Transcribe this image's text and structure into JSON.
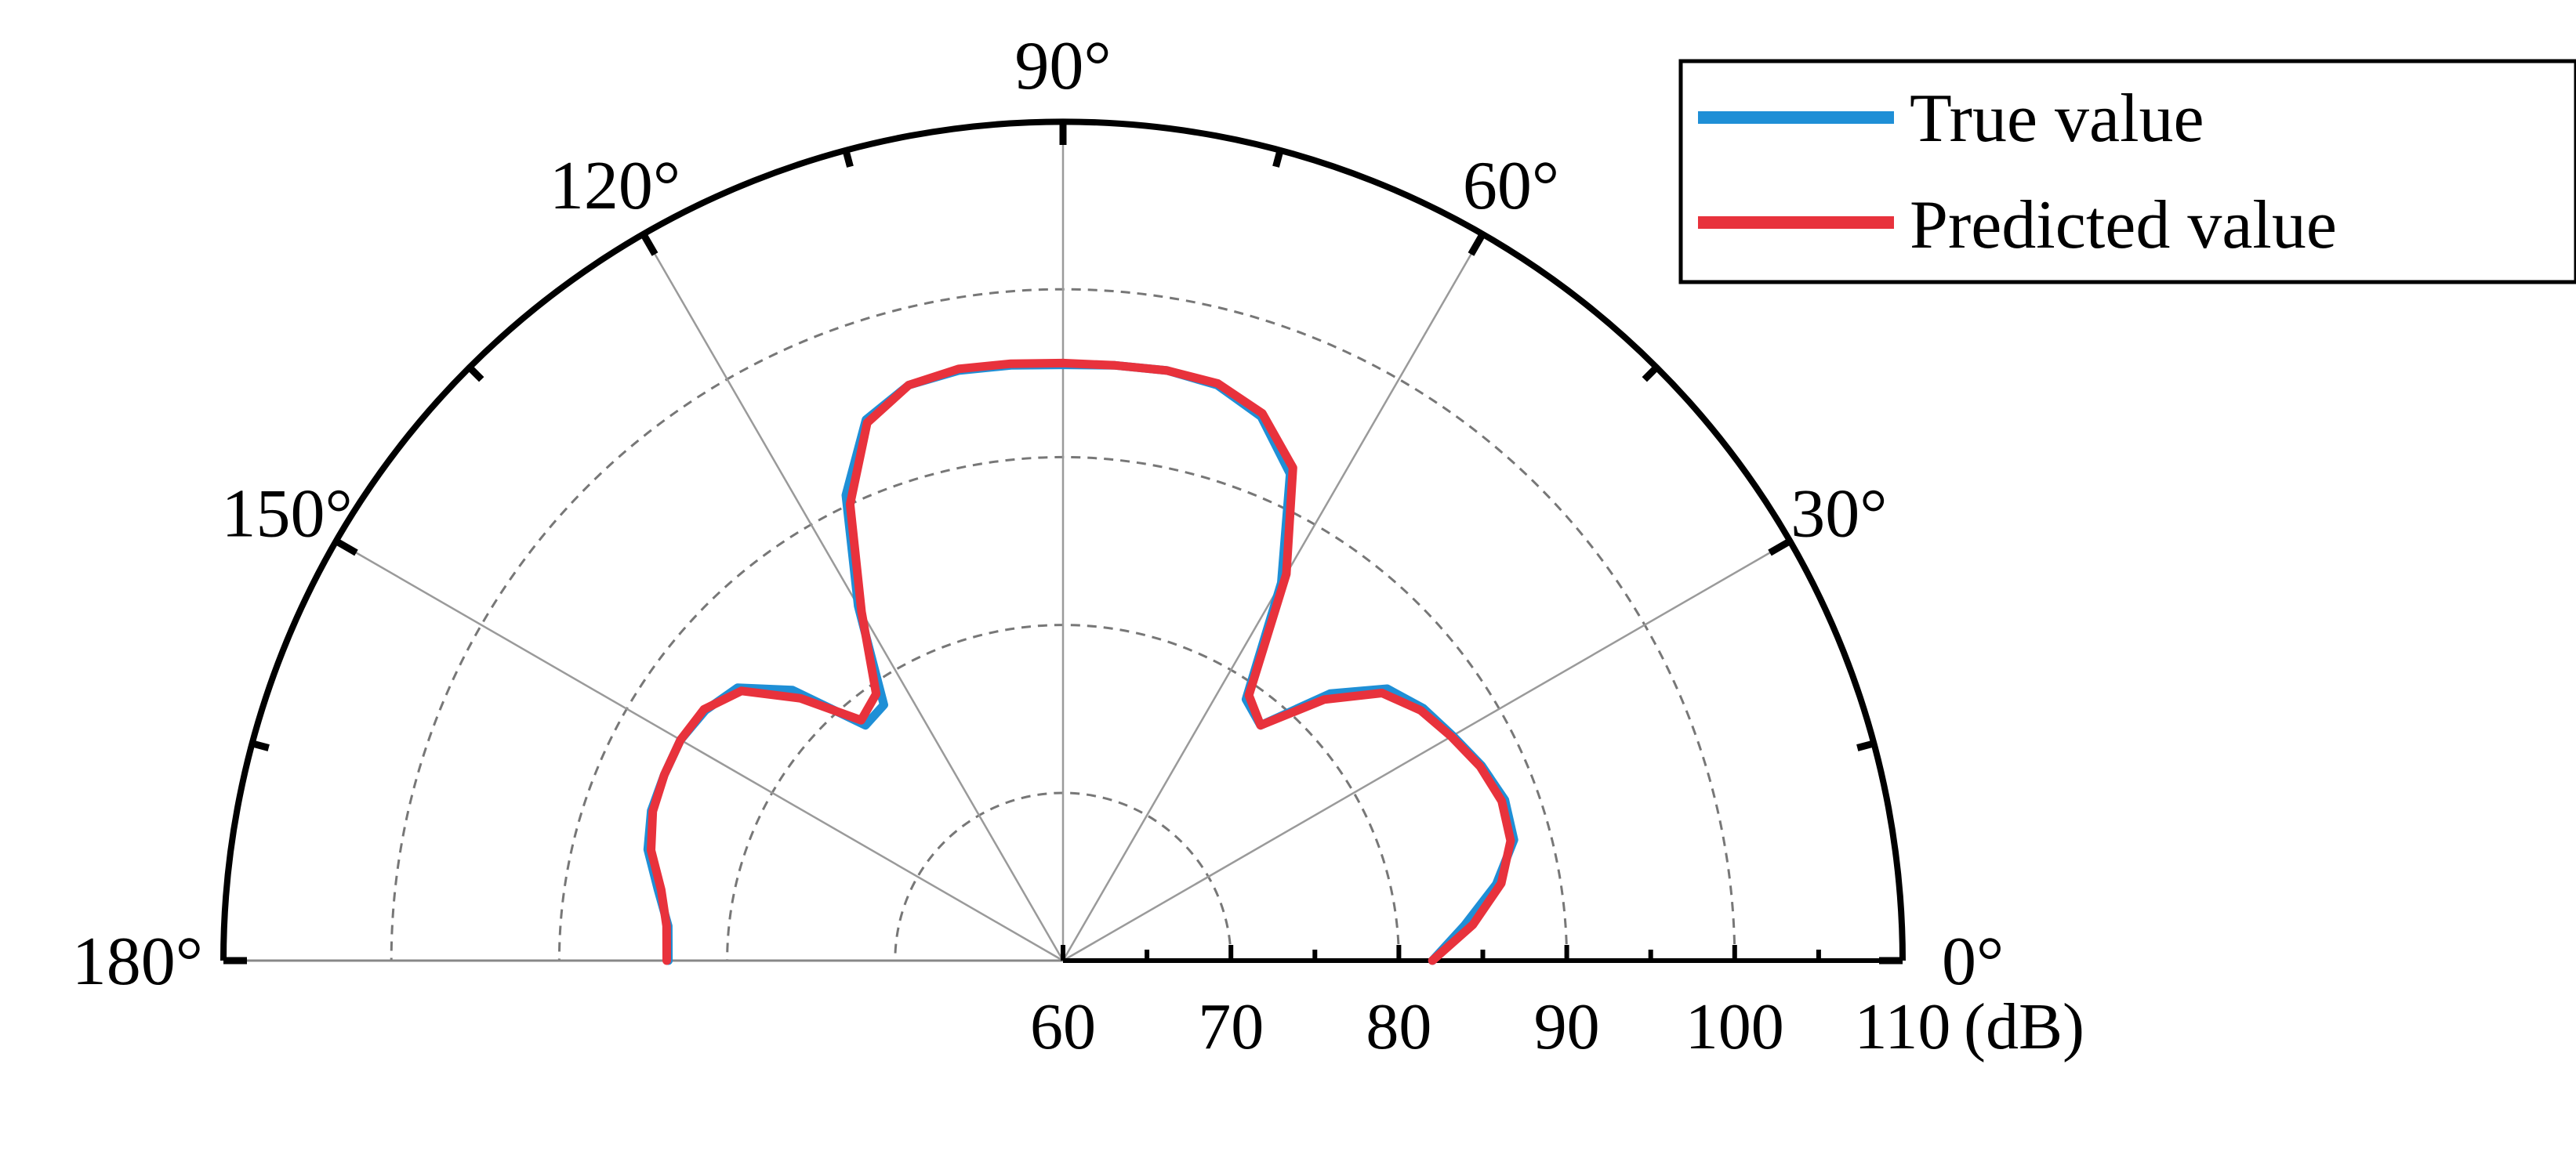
{
  "chart_data": {
    "type": "line",
    "polar": true,
    "angle_range_deg": [
      0,
      180
    ],
    "radial_range": [
      60,
      110
    ],
    "radial_unit": "(dB)",
    "radial_ticks": [
      {
        "value": 60,
        "label": "60"
      },
      {
        "value": 70,
        "label": "70"
      },
      {
        "value": 80,
        "label": "80"
      },
      {
        "value": 90,
        "label": "90"
      },
      {
        "value": 100,
        "label": "100"
      },
      {
        "value": 110,
        "label": "110"
      }
    ],
    "angle_ticks": [
      {
        "value": 0,
        "label": "0°"
      },
      {
        "value": 30,
        "label": "30°"
      },
      {
        "value": 60,
        "label": "60°"
      },
      {
        "value": 90,
        "label": "90°"
      },
      {
        "value": 120,
        "label": "120°"
      },
      {
        "value": 150,
        "label": "150°"
      },
      {
        "value": 180,
        "label": "180°"
      }
    ],
    "grid": true,
    "legend_position": "top-right",
    "series": [
      {
        "name": "True value",
        "color": "#1f8fd6",
        "angles": [
          0,
          5,
          10,
          15,
          20,
          25,
          30,
          35,
          40,
          45,
          50,
          55,
          60,
          65,
          70,
          75,
          80,
          85,
          90,
          95,
          100,
          105,
          110,
          115,
          120,
          125,
          130,
          135,
          140,
          145,
          150,
          155,
          160,
          165,
          170,
          175,
          180
        ],
        "values": [
          82.0,
          84.0,
          86.2,
          87.8,
          88.0,
          87.5,
          86.8,
          86.2,
          85.2,
          82.5,
          78.3,
          79.0,
          86.0,
          92.0,
          94.5,
          95.5,
          95.7,
          95.6,
          95.5,
          95.6,
          95.7,
          95.5,
          94.3,
          90.6,
          84.4,
          78.6,
          78.3,
          82.8,
          85.3,
          86.0,
          86.3,
          86.2,
          86.1,
          85.6,
          84.5,
          83.6,
          83.5
        ]
      },
      {
        "name": "Predicted value",
        "color": "#e8323c",
        "angles": [
          0,
          5,
          10,
          15,
          20,
          25,
          30,
          35,
          40,
          45,
          50,
          55,
          60,
          65,
          70,
          75,
          80,
          85,
          90,
          95,
          100,
          105,
          110,
          115,
          120,
          125,
          130,
          135,
          140,
          145,
          150,
          155,
          160,
          165,
          170,
          175,
          180
        ],
        "values": [
          82.0,
          84.5,
          86.5,
          87.6,
          87.8,
          87.4,
          86.7,
          86.0,
          84.8,
          82.0,
          78.3,
          79.3,
          86.6,
          92.4,
          94.7,
          95.6,
          95.7,
          95.6,
          95.6,
          95.7,
          95.8,
          95.5,
          94.1,
          90.0,
          84.0,
          79.4,
          78.7,
          82.1,
          85.0,
          86.1,
          86.3,
          86.2,
          86.0,
          85.4,
          84.3,
          83.7,
          83.6
        ]
      }
    ]
  }
}
